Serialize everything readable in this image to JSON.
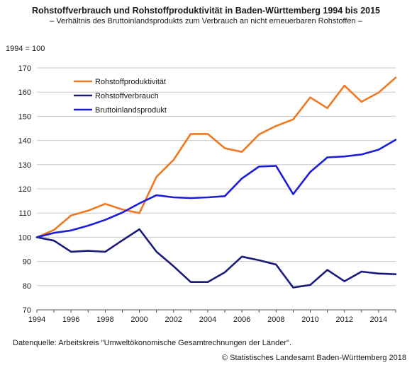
{
  "title": "Rohstoffverbrauch und Rohstoffproduktivität in Baden-Württemberg 1994 bis 2015",
  "subtitle": "– Verhältnis des Bruttoinlandsprodukts zum Verbrauch an nicht erneuerbaren Rohstoffen –",
  "unit_label": "1994 = 100",
  "source": "Datenquelle: Arbeitskreis \"Umweltökonomische Gesamtrechnungen der Länder\".",
  "copyright": "© Statistisches Landesamt Baden-Württemberg 2018",
  "chart_data": {
    "type": "line",
    "x": [
      1994,
      1995,
      1996,
      1997,
      1998,
      1999,
      2000,
      2001,
      2002,
      2003,
      2004,
      2005,
      2006,
      2007,
      2008,
      2009,
      2010,
      2011,
      2012,
      2013,
      2014,
      2015
    ],
    "xlim": [
      1994,
      2015
    ],
    "xticks": [
      1994,
      1996,
      1998,
      2000,
      2002,
      2004,
      2006,
      2008,
      2010,
      2012,
      2014
    ],
    "ylim": [
      70,
      170
    ],
    "yticks": [
      70,
      80,
      90,
      100,
      110,
      120,
      130,
      140,
      150,
      160,
      170
    ],
    "grid": "horizontal",
    "legend_position": "top-left",
    "series": [
      {
        "name": "Rohstoffproduktivität",
        "color": "#f07820",
        "values": [
          100,
          103,
          109,
          111,
          113.8,
          111.5,
          110,
          125,
          132,
          142.7,
          142.7,
          136.8,
          135.3,
          142.5,
          146,
          148.7,
          157.8,
          153.4,
          162.7,
          156,
          159.8,
          166
        ]
      },
      {
        "name": "Rohstoffverbrauch",
        "color": "#1a1a7a",
        "values": [
          100,
          98.6,
          94,
          94.4,
          94,
          98.7,
          103.3,
          94,
          88,
          81.5,
          81.5,
          85.5,
          92,
          90.5,
          88.7,
          79.2,
          80.3,
          86.5,
          81.8,
          85.8,
          85,
          84.7
        ]
      },
      {
        "name": "Bruttoinlandsprodukt",
        "color": "#1c1cdc",
        "values": [
          100,
          101.8,
          102.8,
          104.8,
          107.2,
          110.2,
          114,
          117.4,
          116.5,
          116.2,
          116.5,
          117,
          124.3,
          129.2,
          129.5,
          117.8,
          127,
          133,
          133.4,
          134.2,
          136.2,
          140.3
        ]
      }
    ]
  }
}
